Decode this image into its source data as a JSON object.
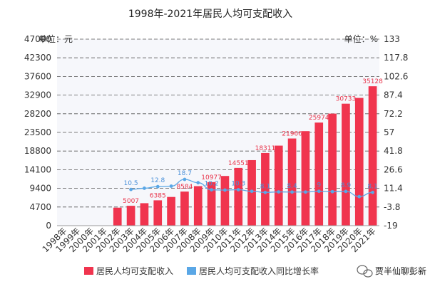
{
  "chart_data": {
    "type": "bar",
    "title": "1998年-2021年居民人均可支配收入",
    "left_unit": "单位：元",
    "right_unit": "单位：%",
    "categories": [
      "1998年",
      "1999年",
      "2000年",
      "2001年",
      "2002年",
      "2003年",
      "2004年",
      "2005年",
      "2006年",
      "2007年",
      "2008年",
      "2009年",
      "2010年",
      "2011年",
      "2012年",
      "2013年",
      "2014年",
      "2015年",
      "2016年",
      "2017年",
      "2018年",
      "2019年",
      "2020年",
      "2021年"
    ],
    "left_ticks": [
      "47000",
      "42300",
      "37600",
      "32900",
      "28200",
      "23500",
      "18800",
      "14100",
      "9400",
      "4700",
      "0"
    ],
    "right_ticks": [
      "133",
      "117.8",
      "102.6",
      "87.4",
      "72.2",
      "57",
      "41.8",
      "26.6",
      "11.4",
      "-3.8",
      "-19"
    ],
    "ylim_left": [
      0,
      47000
    ],
    "ylim_right": [
      -19,
      133
    ],
    "grid": true,
    "legend_position": "bottom",
    "series": [
      {
        "name": "居民人均可支配收入",
        "kind": "bar",
        "axis": "left",
        "color": "#f0344e",
        "values": [
          null,
          null,
          null,
          null,
          4532,
          5007,
          5661,
          6385,
          7229,
          8584,
          9957,
          10977,
          12520,
          14551,
          16510,
          18311,
          20167,
          21966,
          23821,
          25974,
          28228,
          30733,
          32189,
          35128
        ],
        "labels": [
          "",
          "",
          "",
          "",
          "",
          "5007",
          "",
          "6385",
          "",
          "8584",
          "",
          "10977",
          "",
          "14551",
          "",
          "18311",
          "",
          "21966",
          "",
          "25974",
          "",
          "30733",
          "",
          "35128"
        ]
      },
      {
        "name": "居民人均可支配收入同比增长率",
        "kind": "line",
        "axis": "right",
        "color": "#5aa7e6",
        "values": [
          null,
          null,
          null,
          null,
          null,
          10.5,
          11.5,
          12.8,
          13.2,
          18.7,
          16.0,
          10.2,
          10.0,
          10.3,
          9.0,
          8.1,
          8.5,
          8.4,
          8.4,
          9.0,
          8.7,
          8.9,
          4.7,
          8.1
        ],
        "labels": [
          "",
          "",
          "",
          "",
          "",
          "10.5",
          "",
          "12.8",
          "",
          "18.7",
          "",
          "10.2",
          "",
          "10.3",
          "",
          "8.1",
          "",
          "8.4",
          "",
          "9",
          "",
          "8.9",
          "",
          "8.1"
        ]
      }
    ]
  },
  "watermark": {
    "text": "贾半仙聊彭新",
    "icon": "wechat-icon"
  }
}
